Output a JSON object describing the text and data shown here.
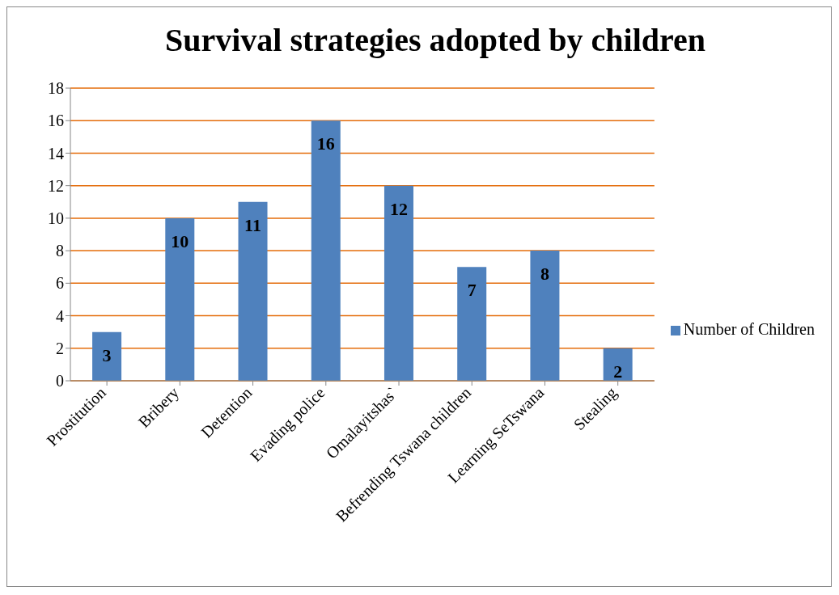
{
  "chart_data": {
    "type": "bar",
    "title": "Survival strategies adopted by children",
    "categories": [
      "Prostitution",
      "Bribery",
      "Detention",
      "Evading police",
      "Omalayitshas`",
      "Befrending Tswana children",
      "Learning SeTswana",
      "Stealing"
    ],
    "series": [
      {
        "name": "Number of Children",
        "color": "#4f81bd",
        "values": [
          3,
          10,
          11,
          16,
          12,
          7,
          8,
          2
        ]
      }
    ],
    "ylim": [
      0,
      18
    ],
    "yticks": [
      0,
      2,
      4,
      6,
      8,
      10,
      12,
      14,
      16,
      18
    ],
    "grid": "y",
    "legend": "right",
    "data_labels": true
  }
}
